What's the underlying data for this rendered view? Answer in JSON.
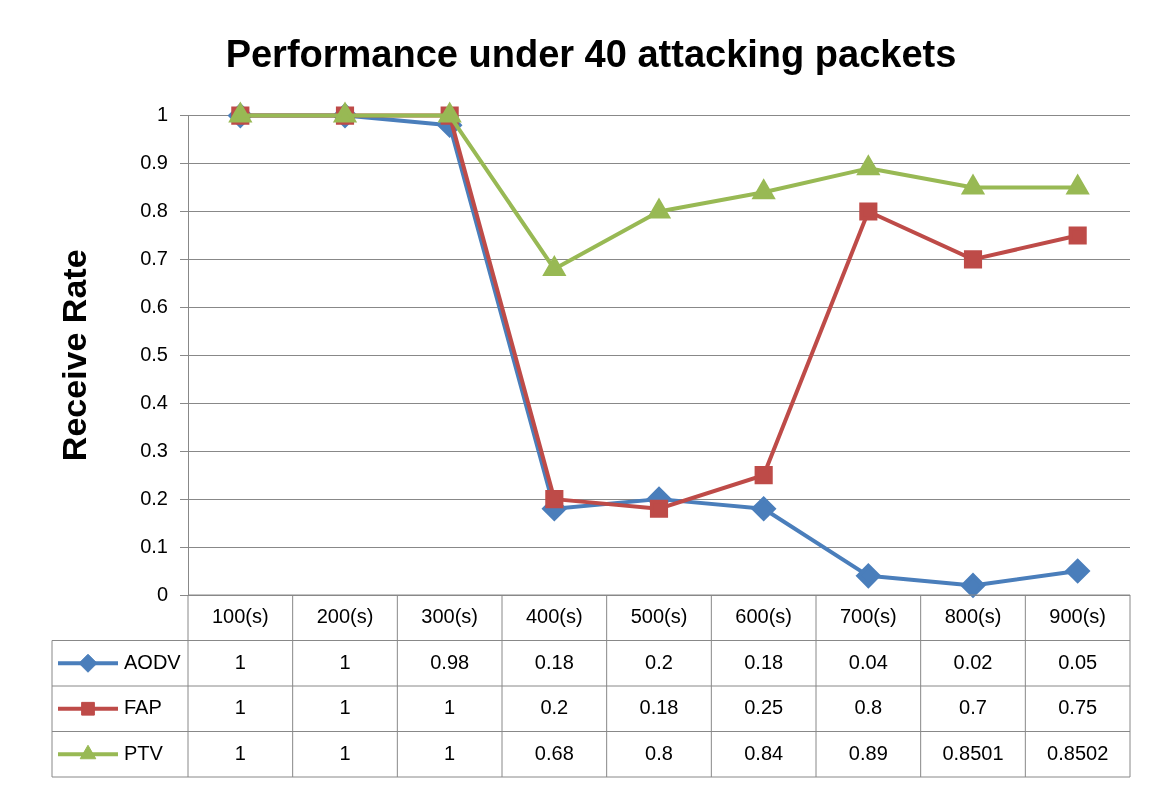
{
  "chart_data": {
    "type": "line",
    "title": "Performance under 40 attacking packets",
    "ylabel": "Receive Rate",
    "categories": [
      "100(s)",
      "200(s)",
      "300(s)",
      "400(s)",
      "500(s)",
      "600(s)",
      "700(s)",
      "800(s)",
      "900(s)"
    ],
    "series": [
      {
        "name": "AODV",
        "color": "#4a7ebb",
        "marker": "diamond",
        "values": [
          1,
          1,
          0.98,
          0.18,
          0.2,
          0.18,
          0.04,
          0.02,
          0.05
        ]
      },
      {
        "name": "FAP",
        "color": "#be4b48",
        "marker": "square",
        "values": [
          1,
          1,
          1,
          0.2,
          0.18,
          0.25,
          0.8,
          0.7,
          0.75
        ]
      },
      {
        "name": "PTV",
        "color": "#98b954",
        "marker": "triangle",
        "values": [
          1,
          1,
          1,
          0.68,
          0.8,
          0.84,
          0.89,
          0.8501,
          0.8502
        ]
      }
    ],
    "ylim": [
      0,
      1
    ],
    "yticks": [
      0,
      0.1,
      0.2,
      0.3,
      0.4,
      0.5,
      0.6,
      0.7,
      0.8,
      0.9,
      1
    ],
    "grid": "y",
    "legend": "bottom",
    "data_labels": true
  }
}
